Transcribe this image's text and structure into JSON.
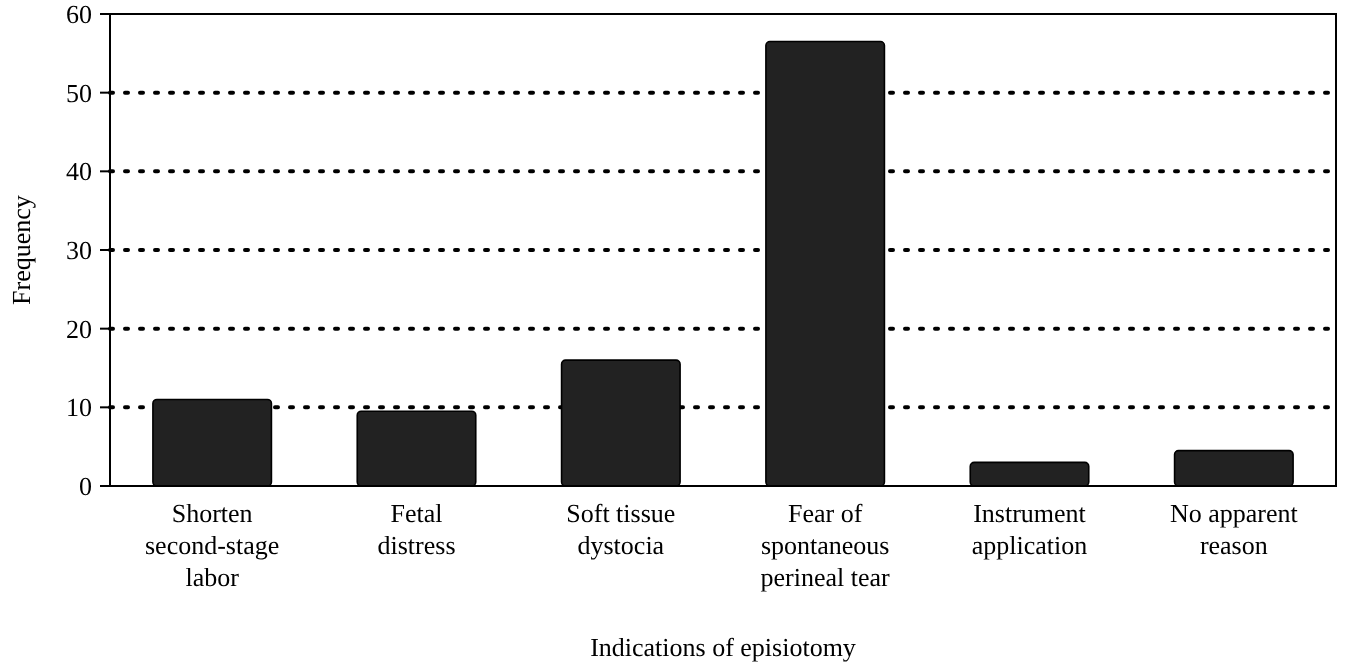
{
  "chart_data": {
    "type": "bar",
    "xlabel": "Indications of episiotomy",
    "ylabel": "Frequency",
    "categories": [
      "Shorten second-stage labor",
      "Fetal distress",
      "Soft tissue dystocia",
      "Fear of spontaneous perineal tear",
      "Instrument application",
      "No apparent reason"
    ],
    "values": [
      11,
      9.5,
      16,
      56.5,
      3,
      4.5
    ],
    "color": "#222222",
    "ylim": [
      0,
      60
    ],
    "yticks": [
      0,
      10,
      20,
      30,
      40,
      50,
      60
    ],
    "grid": "y"
  }
}
